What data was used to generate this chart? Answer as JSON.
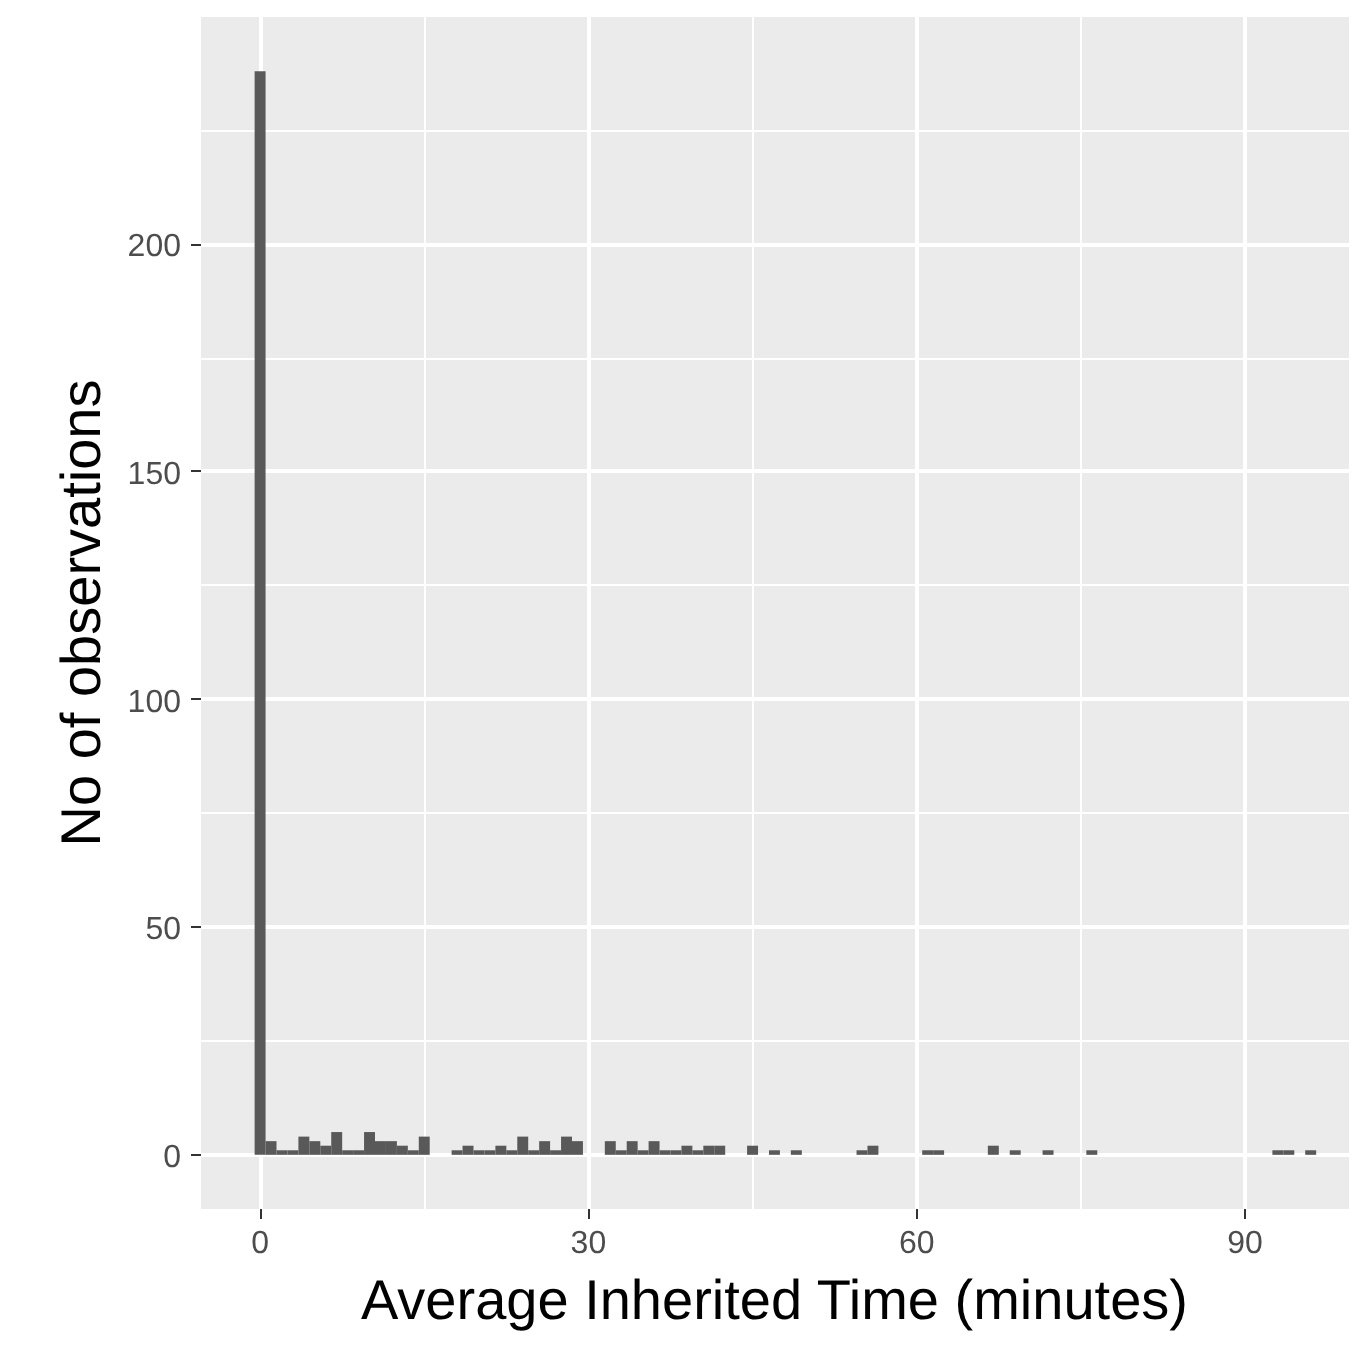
{
  "chart_data": {
    "type": "histogram",
    "xlabel": "Average Inherited Time (minutes)",
    "ylabel": "No of observations",
    "bins": [
      -0.5,
      0.5,
      1.5,
      2.5,
      3.5,
      4.5,
      5.5,
      6.5,
      7.5,
      8.5,
      9.5,
      10.5,
      11.5,
      12.5,
      13.5,
      14.5,
      15.5,
      16.5,
      17.5,
      18.5,
      19.5,
      20.5,
      21.5,
      22.5,
      23.5,
      24.5,
      25.5,
      26.5,
      27.5,
      28.5,
      29.5,
      30.5,
      31.5,
      32.5,
      33.5,
      34.5,
      35.5,
      36.5,
      37.5,
      38.5,
      39.5,
      40.5,
      41.5,
      42.5,
      43.5,
      44.5,
      45.5,
      46.5,
      47.5,
      48.5,
      49.5,
      50.5,
      51.5,
      52.5,
      53.5,
      54.5,
      55.5,
      56.5,
      57.5,
      58.5,
      59.5,
      60.5,
      61.5,
      62.5,
      63.5,
      64.5,
      65.5,
      66.5,
      67.5,
      68.5,
      69.5,
      70.5,
      71.5,
      72.5,
      73.5,
      74.5,
      75.5,
      76.5,
      77.5,
      78.5,
      79.5,
      80.5,
      81.5,
      82.5,
      83.5,
      84.5,
      85.5,
      86.5,
      87.5,
      88.5,
      89.5,
      90.5,
      91.5,
      92.5,
      93.5,
      94.5,
      95.5,
      96.5
    ],
    "values": [
      238,
      3,
      1,
      1,
      4,
      3,
      2,
      5,
      1,
      1,
      5,
      3,
      3,
      2,
      1,
      4,
      0,
      0,
      1,
      2,
      1,
      1,
      2,
      1,
      4,
      1,
      3,
      1,
      4,
      3,
      0,
      0,
      3,
      1,
      3,
      1,
      3,
      1,
      1,
      2,
      1,
      2,
      2,
      0,
      0,
      2,
      0,
      1,
      0,
      1,
      0,
      0,
      0,
      0,
      0,
      1,
      2,
      0,
      0,
      0,
      0,
      1,
      1,
      0,
      0,
      0,
      0,
      2,
      0,
      1,
      0,
      0,
      1,
      0,
      0,
      0,
      1,
      0,
      0,
      0,
      0,
      0,
      0,
      0,
      0,
      0,
      0,
      0,
      0,
      0,
      0,
      0,
      0,
      1,
      1,
      0,
      1
    ],
    "color": "#595959",
    "xlim": [
      -5.4,
      99.5
    ],
    "ylim": [
      -11.9,
      249.9
    ],
    "xticks": [
      0,
      30,
      60,
      90
    ],
    "yticks": [
      0,
      50,
      100,
      150,
      200
    ],
    "grid": true
  }
}
